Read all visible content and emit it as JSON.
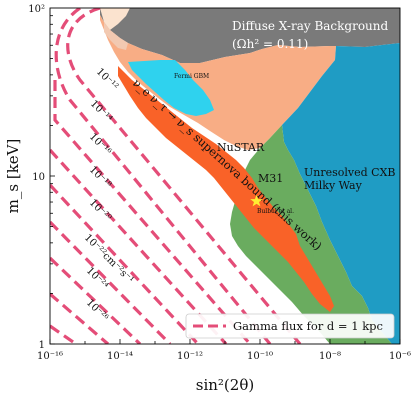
{
  "chart_data": {
    "type": "area",
    "xlabel": "sin²(2θ)",
    "ylabel": "m_s [keV]",
    "x_scale": "log",
    "y_scale": "log",
    "xlim": [
      1e-16,
      1e-06
    ],
    "ylim": [
      1,
      100
    ],
    "x_ticks": [
      "10⁻¹⁶",
      "10⁻¹⁴",
      "10⁻¹²",
      "10⁻¹⁰",
      "10⁻⁸",
      "10⁻⁶"
    ],
    "y_ticks": [
      "1",
      "10",
      "10²"
    ],
    "regions": [
      {
        "label": "Diffuse X-ray Background",
        "sublabel": "(Ωh² = 0.11)",
        "color": "#7a7a7a",
        "boundary": [
          [
            -14.6,
            2.0
          ],
          [
            -13.5,
            1.6
          ],
          [
            -12.6,
            1.43
          ],
          [
            -11.2,
            1.24
          ],
          [
            -10.5,
            1.16
          ],
          [
            -9.8,
            1.17
          ],
          [
            -8.7,
            1.17
          ],
          [
            -8.2,
            1.29
          ],
          [
            -7.0,
            1.27
          ],
          [
            -6.0,
            1.24
          ]
        ]
      },
      {
        "label": "Fermi GBM",
        "color": "#2fd2ee"
      },
      {
        "label": "NuSTAR",
        "color": "#f8ad85"
      },
      {
        "label": "M31",
        "color": "#6aac5f"
      },
      {
        "label": "Unresolved CXB Milky Way",
        "color": "#1f9cc4"
      },
      {
        "label": "ν_e ν_τ → ν_s supernova bound (this work)",
        "color": "#f96228"
      }
    ],
    "marker": {
      "label": "Bulbul et al.",
      "x": -10.1,
      "y": 0.85,
      "color": "#ffee33"
    },
    "gamma_flux_lines": {
      "legend": "Gamma flux for d = 1 kpc",
      "color": "#e44d78",
      "labels": [
        "10⁻¹²",
        "10⁻¹⁴",
        "10⁻¹⁶",
        "10⁻¹⁸",
        "10⁻²⁰",
        "10⁻²²cm⁻²s⁻¹",
        "10⁻²⁴",
        "10⁻²⁶"
      ]
    }
  },
  "annotations": {
    "dxrb_title": "Diffuse X-ray Background",
    "dxrb_sub": "(Ωh² = 0.11)",
    "fermi": "Fermi GBM",
    "nustar": "NuSTAR",
    "m31": "M31",
    "cxb_line1": "Unresolved CXB",
    "cxb_line2": "Milky Way",
    "bulbul": "Bulbul et al.",
    "supernova": "ν_e ν_τ → ν_s supernova bound (this work)"
  },
  "legend": {
    "label": "Gamma flux for d = 1 kpc"
  }
}
